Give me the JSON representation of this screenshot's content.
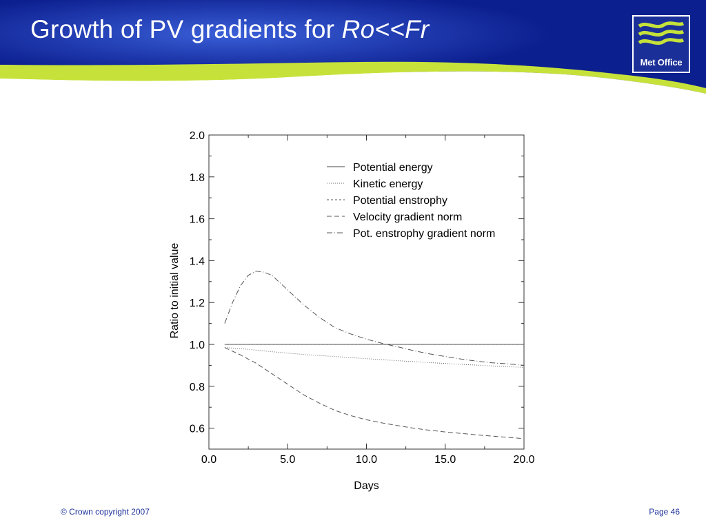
{
  "header": {
    "title_prefix": "Growth of PV gradients for ",
    "title_emph": "Ro<<Fr",
    "logo_text": "Met Office",
    "colors": {
      "navy": "#0c1f8f",
      "lime": "#c6e23a",
      "white": "#ffffff"
    }
  },
  "footer": {
    "copyright": "© Crown copyright 2007",
    "page": "Page 46"
  },
  "chart_data": {
    "type": "line",
    "xlabel": "Days",
    "ylabel": "Ratio to initial value",
    "xlim": [
      0,
      20
    ],
    "ylim": [
      0.5,
      2.0
    ],
    "xticks": [
      0,
      5,
      10,
      15,
      20
    ],
    "xtick_labels": [
      "0.0",
      "5.0",
      "10.0",
      "15.0",
      "20.0"
    ],
    "yticks": [
      0.6,
      0.8,
      1.0,
      1.2,
      1.4,
      1.6,
      1.8,
      2.0
    ],
    "ytick_labels": [
      "0.6",
      "0.8",
      "1.0",
      "1.2",
      "1.4",
      "1.6",
      "1.8",
      "2.0"
    ],
    "grid": false,
    "legend_position": "top-right",
    "series": [
      {
        "name": "Potential energy",
        "dash": "",
        "color": "#444444",
        "x": [
          1,
          20
        ],
        "y": [
          1.0,
          1.0
        ]
      },
      {
        "name": "Kinetic energy",
        "dash": "1 2",
        "color": "#666666",
        "x": [
          1,
          2,
          4,
          6,
          8,
          10,
          12,
          14,
          16,
          18,
          20
        ],
        "y": [
          0.985,
          0.98,
          0.965,
          0.952,
          0.942,
          0.932,
          0.922,
          0.913,
          0.905,
          0.897,
          0.89
        ]
      },
      {
        "name": "Potential enstrophy",
        "dash": "3 3",
        "color": "#555555",
        "x": [
          1,
          20
        ],
        "y": [
          1.0,
          1.0
        ]
      },
      {
        "name": "Velocity gradient norm",
        "dash": "7 4",
        "color": "#555555",
        "x": [
          1,
          2,
          3,
          4,
          5,
          6,
          7,
          8,
          9,
          10,
          11,
          12,
          13,
          14,
          15,
          16,
          17,
          18,
          19,
          20
        ],
        "y": [
          0.985,
          0.95,
          0.91,
          0.86,
          0.81,
          0.76,
          0.72,
          0.685,
          0.66,
          0.64,
          0.625,
          0.612,
          0.6,
          0.59,
          0.582,
          0.575,
          0.568,
          0.562,
          0.556,
          0.55
        ]
      },
      {
        "name": "Pot. enstrophy gradient norm",
        "dash": "8 3 1 3",
        "color": "#555555",
        "x": [
          1,
          1.5,
          2,
          2.5,
          3,
          3.5,
          4,
          5,
          6,
          7,
          8,
          9,
          10,
          11,
          12,
          13,
          14,
          15,
          16,
          17,
          18,
          19,
          20
        ],
        "y": [
          1.1,
          1.2,
          1.28,
          1.33,
          1.35,
          1.345,
          1.33,
          1.26,
          1.19,
          1.13,
          1.08,
          1.05,
          1.025,
          1.005,
          0.988,
          0.97,
          0.955,
          0.942,
          0.93,
          0.92,
          0.912,
          0.907,
          0.9
        ]
      }
    ]
  }
}
